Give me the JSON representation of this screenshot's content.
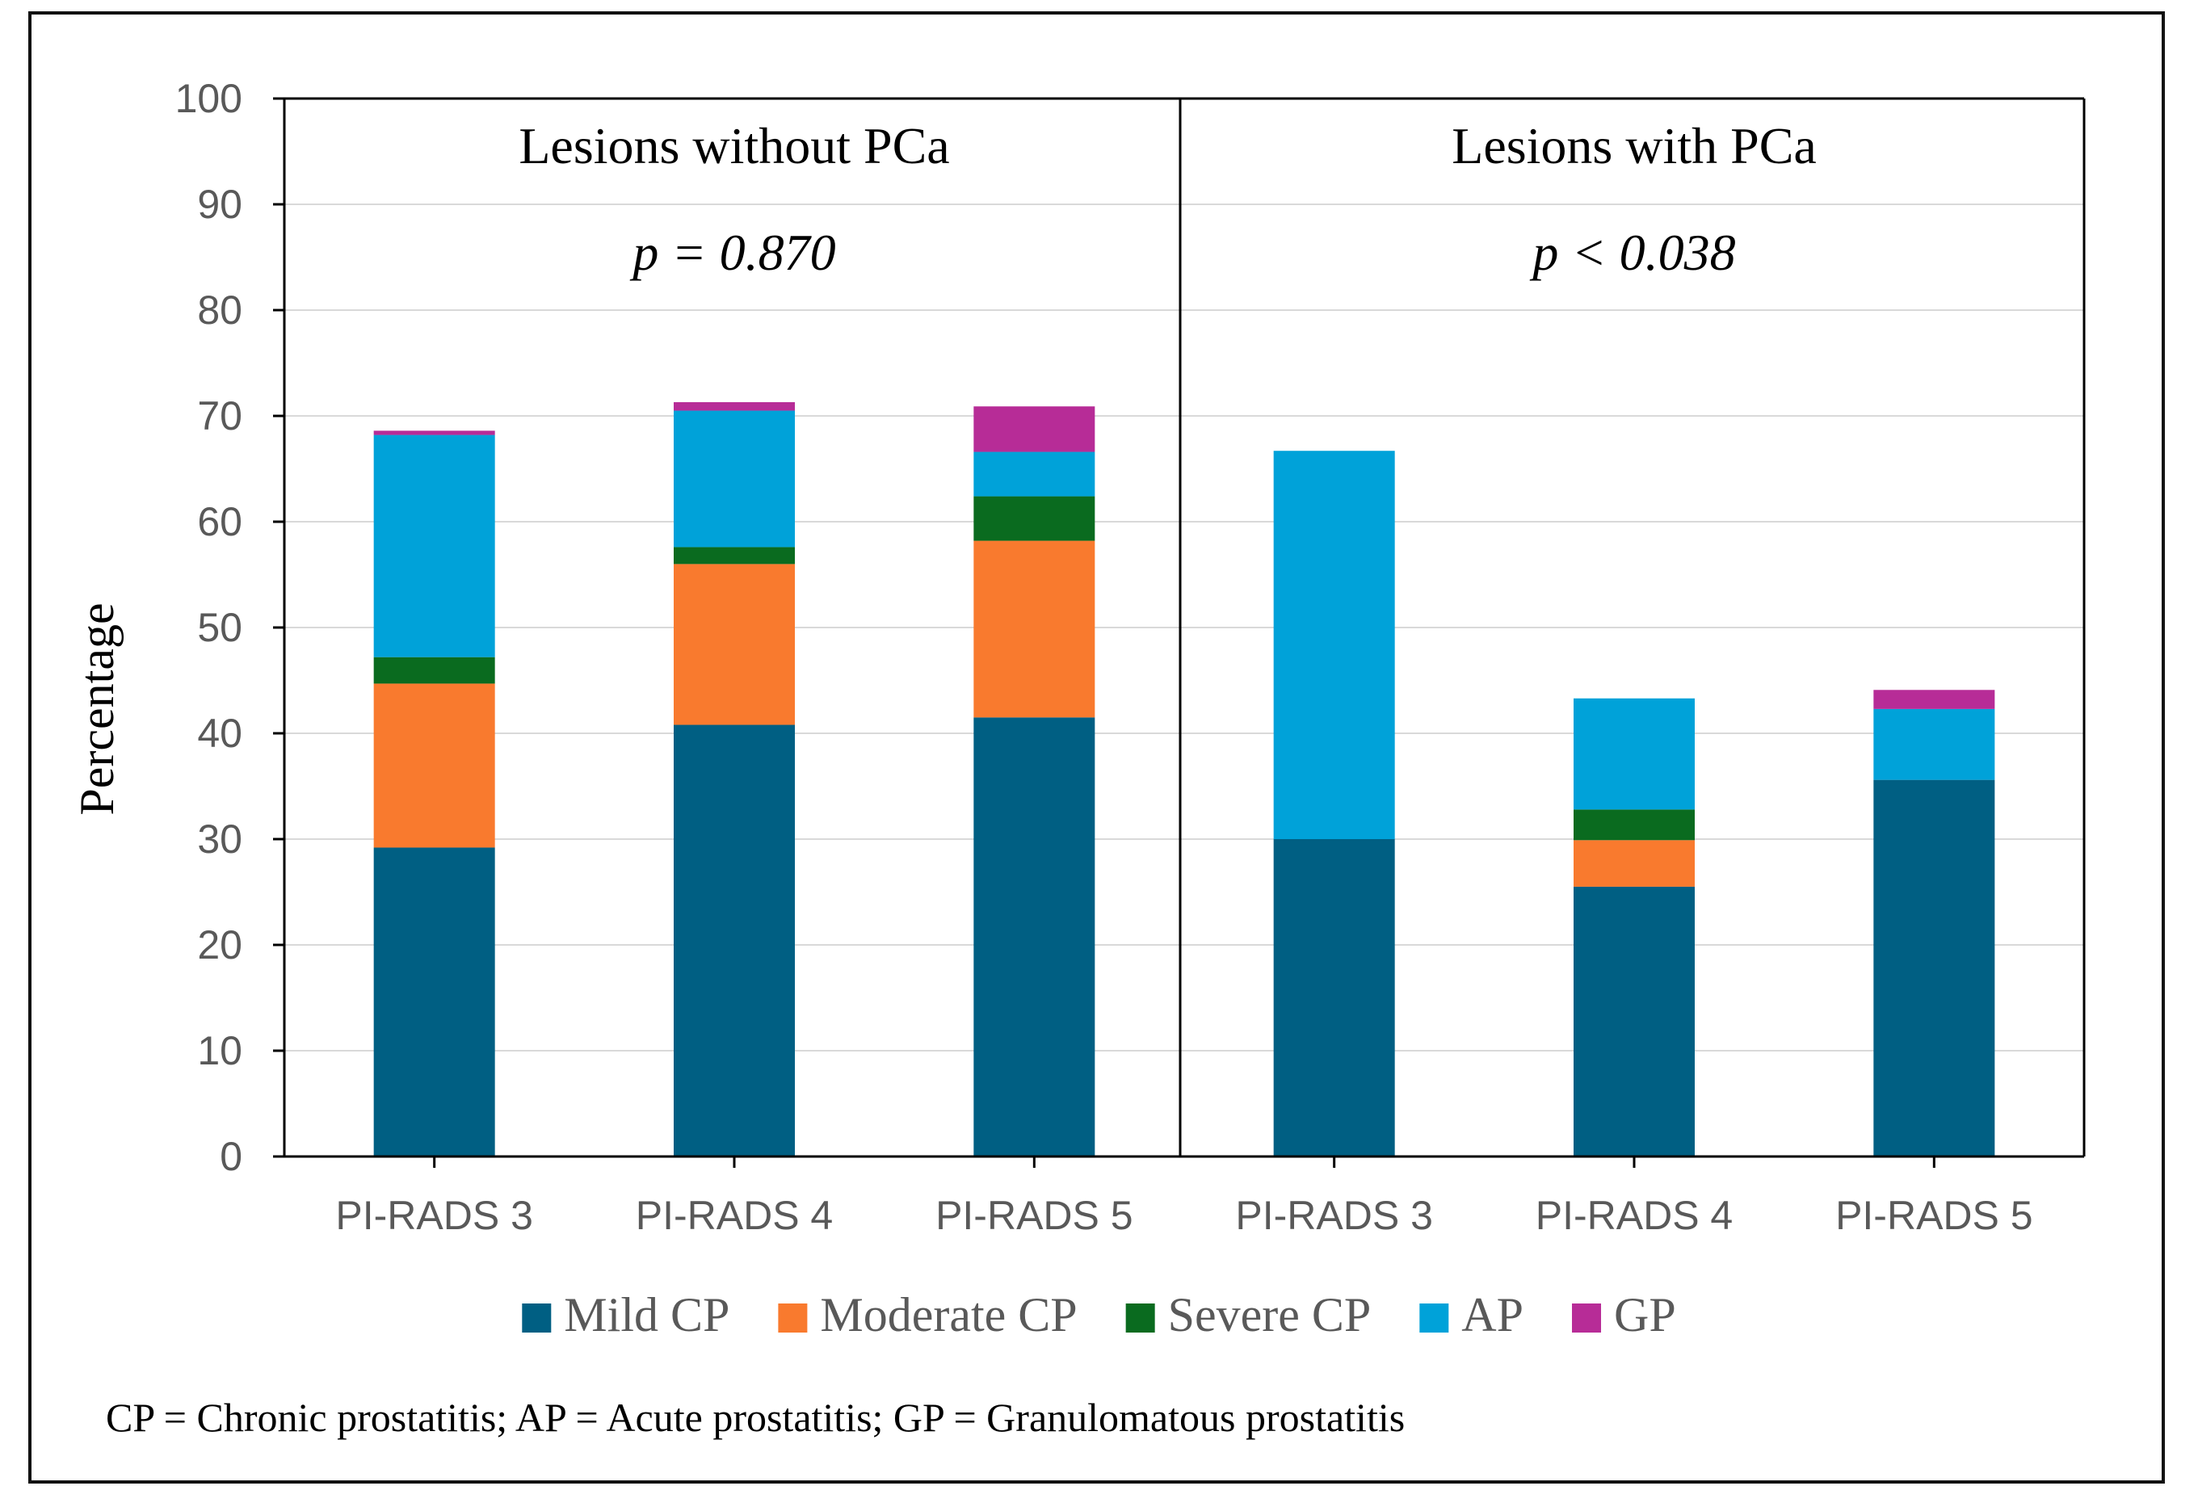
{
  "chart_data": {
    "type": "bar",
    "stacked": true,
    "ylabel": "Percentage",
    "ylim": [
      0,
      100
    ],
    "yticks": [
      0,
      10,
      20,
      30,
      40,
      50,
      60,
      70,
      80,
      90,
      100
    ],
    "grid": true,
    "groups": [
      {
        "title": "Lesions without PCa",
        "pvalue": "p = 0.870"
      },
      {
        "title": "Lesions with PCa",
        "pvalue": "p < 0.038"
      }
    ],
    "categories": [
      "PI-RADS 3",
      "PI-RADS 4",
      "PI-RADS 5",
      "PI-RADS 3",
      "PI-RADS 4",
      "PI-RADS 5"
    ],
    "category_group": [
      0,
      0,
      0,
      1,
      1,
      1
    ],
    "series": [
      {
        "name": "Mild CP",
        "color": "#005f83",
        "values": [
          29.2,
          40.8,
          41.5,
          30.0,
          25.5,
          35.6
        ]
      },
      {
        "name": "Moderate CP",
        "color": "#f97a2e",
        "values": [
          15.5,
          15.2,
          16.7,
          0,
          4.4,
          0
        ]
      },
      {
        "name": "Severe CP",
        "color": "#0a6b1f",
        "values": [
          2.5,
          1.6,
          4.2,
          0,
          2.9,
          0
        ]
      },
      {
        "name": "AP",
        "color": "#00a2d9",
        "values": [
          21.0,
          12.9,
          4.2,
          36.7,
          10.5,
          6.7
        ]
      },
      {
        "name": "GP",
        "color": "#b72c97",
        "values": [
          0.4,
          0.8,
          4.3,
          0,
          0,
          1.8
        ]
      }
    ],
    "legend_position": "bottom"
  },
  "footnote": "CP = Chronic prostatitis; AP = Acute prostatitis; GP = Granulomatous prostatitis"
}
